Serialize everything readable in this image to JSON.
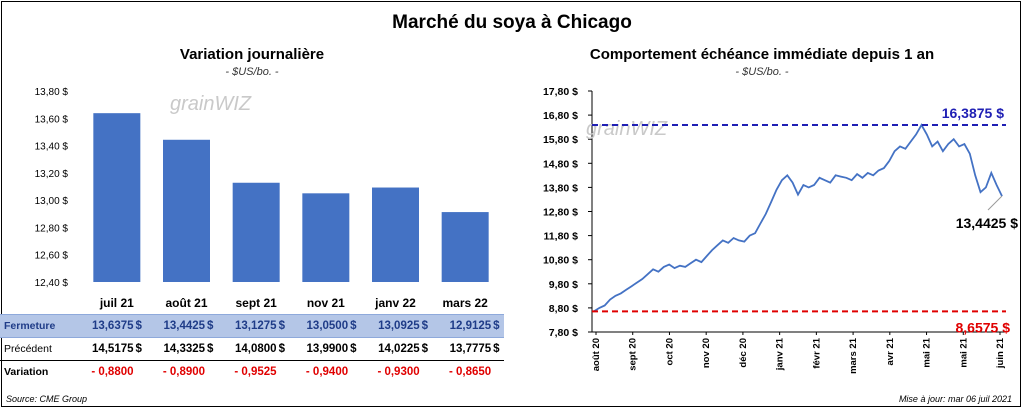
{
  "title": "Marché du soya à Chicago",
  "watermark": "grainWIZ",
  "left": {
    "title": "Variation  journalière",
    "subtitle": "- $US/bo. -"
  },
  "right": {
    "title": "Comportement  échéance immédiate depuis 1 an",
    "subtitle": "- $US/bo. -"
  },
  "table": {
    "row_labels": {
      "close": "Fermeture",
      "prev": "Précédent",
      "var": "Variation"
    },
    "close": [
      "13,6375",
      "13,4425",
      "13,1275",
      "13,0500",
      "13,0925",
      "12,9125"
    ],
    "prev": [
      "14,5175",
      "14,3325",
      "14,0800",
      "13,9900",
      "14,0225",
      "13,7775"
    ],
    "var": [
      "- 0,8800",
      "- 0,8900",
      "- 0,9525",
      "- 0,9400",
      "- 0,9300",
      "- 0,8650"
    ],
    "currency": "$"
  },
  "footer": {
    "source": "Source: CME Group",
    "update": "Mise à jour: mar 06 juil 2021"
  },
  "chart_data": [
    {
      "type": "bar",
      "categories": [
        "juil 21",
        "août 21",
        "sept 21",
        "nov 21",
        "janv 22",
        "mars 22"
      ],
      "values": [
        13.6375,
        13.4425,
        13.1275,
        13.05,
        13.0925,
        12.9125
      ],
      "ylim": [
        12.4,
        13.8
      ],
      "yticks": [
        "12,40 $",
        "12,60 $",
        "12,80 $",
        "13,00 $",
        "13,20 $",
        "13,40 $",
        "13,60 $",
        "13,80 $"
      ],
      "color": "#4472c4",
      "grid": false
    },
    {
      "type": "line",
      "color": "#4472c4",
      "ylim": [
        7.8,
        17.8
      ],
      "yticks": [
        "7,80 $",
        "8,80 $",
        "9,80 $",
        "10,80 $",
        "11,80 $",
        "12,80 $",
        "13,80 $",
        "14,80 $",
        "15,80 $",
        "16,80 $",
        "17,80 $"
      ],
      "xticks": [
        "août 20",
        "sept 20",
        "oct 20",
        "nov 20",
        "déc 20",
        "janv 21",
        "févr 21",
        "mars 21",
        "avr 21",
        "mai 21",
        "mai 21",
        "juin 21"
      ],
      "grid": false,
      "values": [
        8.66,
        8.8,
        8.9,
        9.15,
        9.3,
        9.4,
        9.55,
        9.7,
        9.85,
        10.0,
        10.2,
        10.4,
        10.3,
        10.5,
        10.6,
        10.45,
        10.55,
        10.5,
        10.65,
        10.8,
        10.7,
        10.95,
        11.2,
        11.4,
        11.6,
        11.5,
        11.7,
        11.6,
        11.55,
        11.8,
        11.9,
        12.3,
        12.7,
        13.2,
        13.7,
        14.1,
        14.3,
        14.0,
        13.5,
        13.9,
        13.8,
        13.9,
        14.2,
        14.1,
        14.0,
        14.3,
        14.25,
        14.2,
        14.1,
        14.35,
        14.2,
        14.4,
        14.3,
        14.5,
        14.6,
        14.9,
        15.3,
        15.5,
        15.4,
        15.7,
        16.0,
        16.39,
        16.0,
        15.5,
        15.7,
        15.3,
        15.6,
        15.8,
        15.5,
        15.6,
        15.2,
        14.3,
        13.6,
        13.8,
        14.4,
        13.9,
        13.44
      ],
      "annotations": [
        {
          "label": "16,3875 $",
          "value": 16.3875,
          "color": "#1f1fb4"
        },
        {
          "label": "13,4425 $",
          "value": 13.4425,
          "color": "#000000"
        },
        {
          "label": "8,6575 $",
          "value": 8.6575,
          "color": "#e00000"
        }
      ]
    }
  ]
}
